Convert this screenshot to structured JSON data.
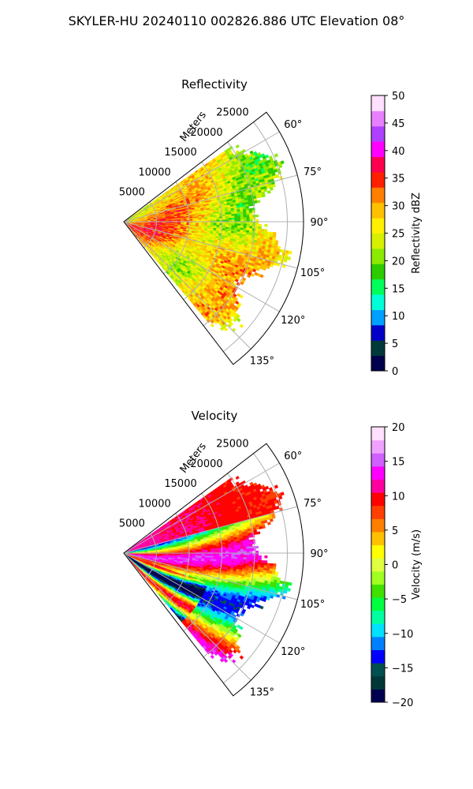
{
  "suptitle": "SKYLER-HU  20240110  002826.886 UTC Elevation 08°",
  "chart_data": [
    {
      "type": "heatmap",
      "subtype": "polar-sector",
      "title": "Reflectivity",
      "radial_axis_label": "Meters",
      "radial_ticks": [
        "5000",
        "10000",
        "15000",
        "20000",
        "25000"
      ],
      "radial_tick_values": [
        5000,
        10000,
        15000,
        20000,
        25000
      ],
      "radial_max": 25000,
      "angular_range_deg": [
        52.5,
        142.5
      ],
      "angular_ticks": [
        "60°",
        "75°",
        "90°",
        "105°",
        "120°",
        "135°"
      ],
      "angular_tick_values": [
        60,
        75,
        90,
        105,
        120,
        135
      ],
      "data_extent_deg": [
        55,
        140
      ],
      "grid": true,
      "colorbar": {
        "label": "Reflectivity dBZ",
        "range": [
          0,
          50
        ],
        "ticks": [
          "0",
          "5",
          "10",
          "15",
          "20",
          "25",
          "30",
          "35",
          "40",
          "45",
          "50"
        ],
        "colors": [
          "#00004c",
          "#003a3a",
          "#0000c8",
          "#00a0ff",
          "#00ffd8",
          "#00ff5a",
          "#2ccc00",
          "#8bea00",
          "#d6f000",
          "#fff000",
          "#ffc000",
          "#ff8000",
          "#ff2000",
          "#ff0050",
          "#ff00ff",
          "#b040ff",
          "#e680ff",
          "#ffe0ff"
        ]
      }
    },
    {
      "type": "heatmap",
      "subtype": "polar-sector",
      "title": "Velocity",
      "radial_axis_label": "Meters",
      "radial_ticks": [
        "5000",
        "10000",
        "15000",
        "20000",
        "25000"
      ],
      "radial_tick_values": [
        5000,
        10000,
        15000,
        20000,
        25000
      ],
      "radial_max": 25000,
      "angular_range_deg": [
        52.5,
        142.5
      ],
      "angular_ticks": [
        "60°",
        "75°",
        "90°",
        "105°",
        "120°",
        "135°"
      ],
      "angular_tick_values": [
        60,
        75,
        90,
        105,
        120,
        135
      ],
      "data_extent_deg": [
        55,
        140
      ],
      "grid": true,
      "colorbar": {
        "label": "Velocity (m/s)",
        "range": [
          -20,
          20
        ],
        "ticks": [
          "−20",
          "−15",
          "−10",
          "−5",
          "0",
          "5",
          "10",
          "15",
          "20"
        ],
        "colors": [
          "#000050",
          "#003838",
          "#005050",
          "#0000ff",
          "#0080ff",
          "#00e0ff",
          "#00ffa0",
          "#00ff40",
          "#40e000",
          "#a0ff20",
          "#e0ff40",
          "#ffff00",
          "#ffc000",
          "#ff8000",
          "#ff4000",
          "#ff0000",
          "#ff00a0",
          "#ff00ff",
          "#d060ff",
          "#f0a0ff",
          "#ffe0ff"
        ]
      }
    }
  ]
}
